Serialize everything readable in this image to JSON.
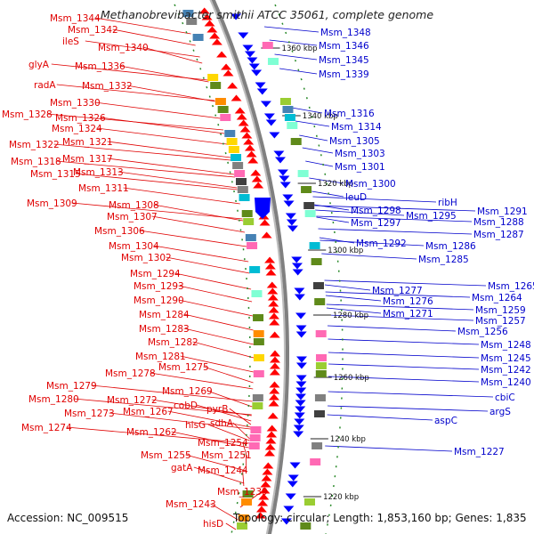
{
  "title": "Methanobrevibacter smithii ATCC 35061, complete genome",
  "footer": {
    "accession": "Accession: NC_009515",
    "summary": "Topology: circular; Length: 1,853,160 bp; Genes: 1,835"
  },
  "colors": {
    "forward": "#ff0000",
    "reverse": "#0000ff",
    "backbone": "#808080",
    "tick": "#2a8a2a"
  },
  "ticks": [
    "1360 kbp",
    "1340 kbp",
    "1320 kbp",
    "1300 kbp",
    "1280 kbp",
    "1260 kbp",
    "1240 kbp",
    "1220 kbp"
  ],
  "left_labels": [
    "Msm_1344",
    "Msm_1342",
    "ileS",
    "Msm_1340",
    "glyA",
    "Msm_1336",
    "radA",
    "Msm_1332",
    "Msm_1330",
    "Msm_1328",
    "Msm_1326",
    "Msm_1324",
    "Msm_1322",
    "Msm_1321",
    "Msm_1318",
    "Msm_1317",
    "Msm_1315",
    "Msm_1313",
    "Msm_1311",
    "Msm_1309",
    "Msm_1308",
    "Msm_1307",
    "Msm_1306",
    "Msm_1304",
    "Msm_1302",
    "Msm_1294",
    "Msm_1293",
    "Msm_1290",
    "Msm_1284",
    "Msm_1283",
    "Msm_1282",
    "Msm_1281",
    "Msm_1275",
    "Msm_1278",
    "Msm_1279",
    "Msm_1280",
    "Msm_1272",
    "Msm_1269",
    "Msm_1273",
    "Msm_1267",
    "cobD",
    "Msm_1274",
    "pyrB",
    "Msm_1262",
    "hisG",
    "sdhA",
    "Msm_1254",
    "Msm_1255",
    "Msm_1251",
    "gatA",
    "Msm_1244",
    "Msm_1239",
    "Msm_1243",
    "hisD"
  ],
  "right_labels": [
    "Msm_1348",
    "Msm_1346",
    "Msm_1345",
    "Msm_1339",
    "Msm_1316",
    "Msm_1314",
    "Msm_1305",
    "Msm_1303",
    "Msm_1301",
    "Msm_1300",
    "leuD",
    "ribH",
    "Msm_1298",
    "Msm_1295",
    "Msm_1291",
    "Msm_1297",
    "Msm_1288",
    "Msm_1287",
    "Msm_1292",
    "Msm_1286",
    "Msm_1285",
    "Msm_1277",
    "Msm_1265",
    "Msm_1276",
    "Msm_1264",
    "Msm_1271",
    "Msm_1259",
    "Msm_1257",
    "Msm_1256",
    "Msm_1248",
    "Msm_1245",
    "Msm_1242",
    "Msm_1240",
    "cbiC",
    "argS",
    "aspC",
    "Msm_1227"
  ]
}
